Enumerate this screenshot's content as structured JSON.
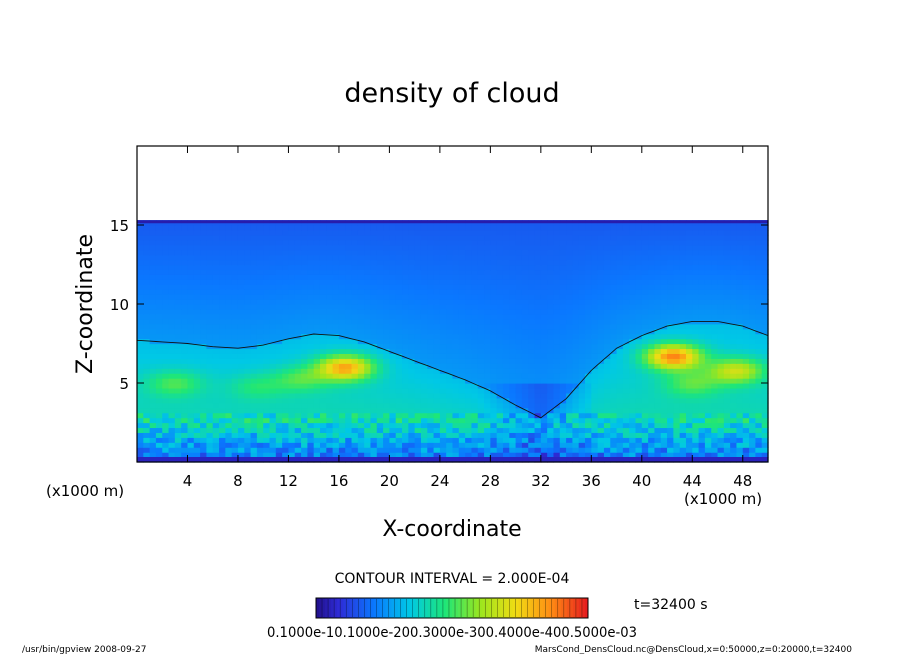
{
  "chart_data": {
    "type": "heatmap",
    "title": "density of cloud",
    "xlabel": "X-coordinate",
    "ylabel": "Z-coordinate",
    "x_unit_left": "(x1000 m)",
    "x_unit_right": "(x1000 m)",
    "xlim": [
      0,
      50
    ],
    "ylim": [
      0,
      20
    ],
    "xticks": [
      4,
      8,
      12,
      16,
      20,
      24,
      28,
      32,
      36,
      40,
      44,
      48
    ],
    "yticks": [
      5,
      10,
      15
    ],
    "field_top": 15.3,
    "contour_interval_text": "CONTOUR INTERVAL = 2.000E-04",
    "time_text": "t=32400 s",
    "colorbar_labels_text": "0.1000e-10.1000e-200.3000e-300.4000e-400.5000e-03",
    "colorbar_range": [
      0.0001,
      0.0006
    ],
    "colormap": [
      "#1a0060",
      "#2e2bd6",
      "#0a78ff",
      "#00c8e6",
      "#1ee678",
      "#9ce61e",
      "#f0dc14",
      "#ff8c14",
      "#e61e1e"
    ],
    "cloud_profile": {
      "x": [
        0,
        2,
        4,
        6,
        8,
        10,
        12,
        14,
        16,
        18,
        20,
        22,
        24,
        26,
        28,
        30,
        32,
        34,
        36,
        38,
        40,
        42,
        44,
        46,
        48,
        50
      ],
      "top": [
        7.7,
        7.6,
        7.5,
        7.3,
        7.2,
        7.4,
        7.8,
        8.1,
        8.0,
        7.6,
        7.0,
        6.4,
        5.8,
        5.2,
        4.5,
        3.6,
        2.8,
        4.0,
        5.8,
        7.2,
        8.0,
        8.6,
        8.9,
        8.9,
        8.6,
        8.0
      ]
    },
    "highlights": [
      {
        "x": 3.0,
        "z": 5.0,
        "level": 0.55
      },
      {
        "x": 9.5,
        "z": 4.8,
        "level": 0.5
      },
      {
        "x": 16.5,
        "z": 6.0,
        "level": 0.85
      },
      {
        "x": 13.0,
        "z": 5.3,
        "level": 0.55
      },
      {
        "x": 42.5,
        "z": 6.7,
        "level": 0.9
      },
      {
        "x": 47.5,
        "z": 5.8,
        "level": 0.7
      },
      {
        "x": 44.0,
        "z": 5.0,
        "level": 0.55
      }
    ]
  },
  "footer": {
    "left": "/usr/bin/gpview   2008-09-27",
    "right": "MarsCond_DensCloud.nc@DensCloud,x=0:50000,z=0:20000,t=32400"
  }
}
